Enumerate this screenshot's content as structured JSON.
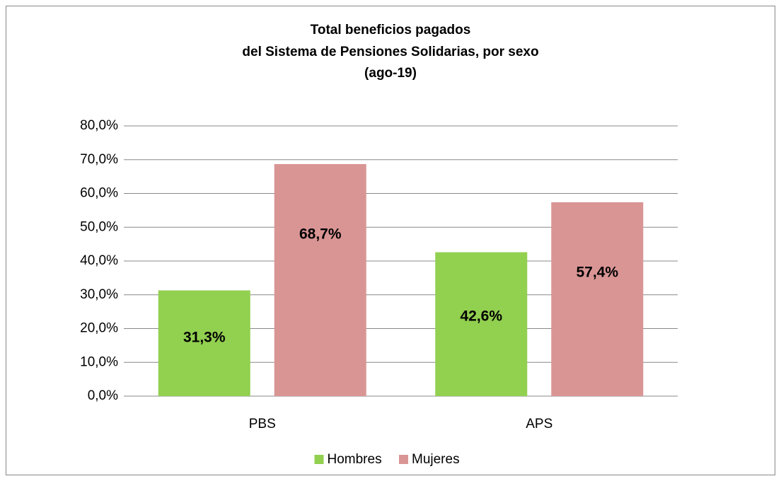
{
  "chart_data": {
    "type": "bar",
    "title": [
      "Total beneficios pagados",
      "del Sistema de Pensiones Solidarias, por sexo",
      "(ago-19)"
    ],
    "categories": [
      "PBS",
      "APS"
    ],
    "series": [
      {
        "name": "Hombres",
        "color": "#92d050",
        "values": [
          31.3,
          42.6
        ],
        "value_labels": [
          "31,3%",
          "42,6%"
        ]
      },
      {
        "name": "Mujeres",
        "color": "#d99594",
        "values": [
          68.7,
          57.4
        ],
        "value_labels": [
          "68,7%",
          "57,4%"
        ]
      }
    ],
    "ylim": [
      0,
      80
    ],
    "yticks": [
      {
        "value": 0,
        "label": "0,0%"
      },
      {
        "value": 10,
        "label": "10,0%"
      },
      {
        "value": 20,
        "label": "20,0%"
      },
      {
        "value": 30,
        "label": "30,0%"
      },
      {
        "value": 40,
        "label": "40,0%"
      },
      {
        "value": 50,
        "label": "50,0%"
      },
      {
        "value": 60,
        "label": "60,0%"
      },
      {
        "value": 70,
        "label": "70,0%"
      },
      {
        "value": 80,
        "label": "80,0%"
      }
    ],
    "grid": true,
    "legend": "bottom"
  }
}
